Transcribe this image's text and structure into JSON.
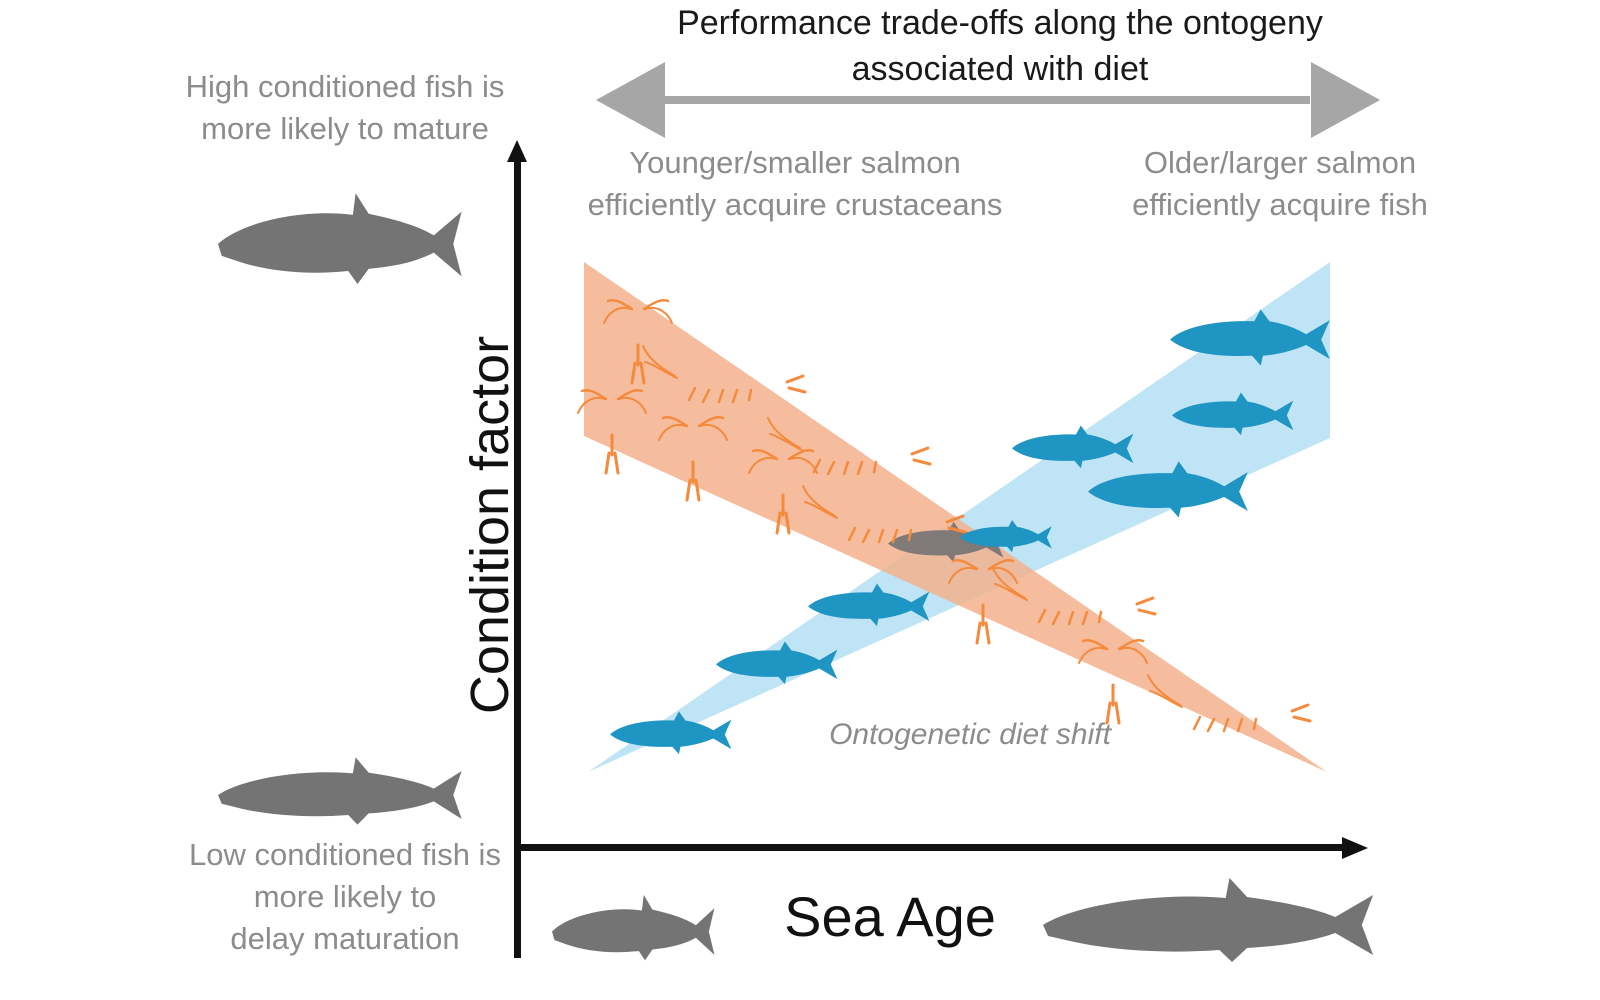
{
  "title": {
    "line1": "Performance trade-offs along the ontogeny",
    "line2": "associated with diet"
  },
  "notes": {
    "high_line1": "High conditioned fish is",
    "high_line2": "more likely to mature",
    "low_line1": "Low conditioned fish is",
    "low_line2": "more likely to",
    "low_line3": "delay maturation"
  },
  "prey_labels": {
    "young_line1": "Younger/smaller salmon",
    "young_line2": "efficiently acquire crustaceans",
    "old_line1": "Older/larger salmon",
    "old_line2": "efficiently acquire fish"
  },
  "axes": {
    "y_label": "Condition factor",
    "x_label": "Sea Age"
  },
  "center_label": "Ontogenetic diet shift",
  "colors": {
    "crustacean_band": "#f3b28c",
    "crustacean": "#f58a3c",
    "fish_band": "#b7e1f5",
    "fish": "#1f95c4",
    "salmon_silhouette": "#747474",
    "arrow_grey": "#a6a6a6",
    "axis": "#111111"
  },
  "icons": {
    "salmon": "salmon-silhouette-icon",
    "forage_fish": "forage-fish-icon",
    "copepod": "copepod-icon",
    "krill": "krill-icon",
    "double_arrow": "double-arrow-icon"
  }
}
